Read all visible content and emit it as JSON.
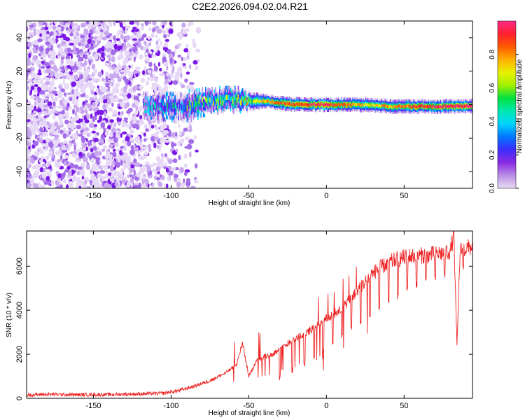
{
  "title": "C2E2.2026.094.02.04.R21",
  "chart_data": [
    {
      "type": "heatmap",
      "name": "spectrogram",
      "xlabel": "Height of straight line (km)",
      "ylabel": "Frequency (Hz)",
      "xlim": [
        -193,
        94
      ],
      "ylim": [
        -50,
        50
      ],
      "xticks": [
        -150,
        -100,
        -50,
        0,
        50
      ],
      "yticks": [
        -40,
        -20,
        0,
        20,
        40
      ],
      "colorbar": {
        "label": "Normalized spectral amplitude",
        "range": [
          0,
          1
        ],
        "ticks": [
          0.0,
          0.2,
          0.4,
          0.6,
          0.8
        ],
        "colors": [
          "#e8dcf2",
          "#b98ee6",
          "#8a2be2",
          "#3d2dff",
          "#0077ff",
          "#00d4ff",
          "#00e8b0",
          "#00e040",
          "#a0f000",
          "#e8f000",
          "#ffb000",
          "#ff5a00",
          "#ff2030",
          "#ff2a8a"
        ]
      },
      "noise_region_km": [
        -193,
        -88
      ],
      "signal_trace": [
        {
          "x": -115,
          "freq": -1,
          "width": 5,
          "amp": 0.2
        },
        {
          "x": -100,
          "freq": -2,
          "width": 6,
          "amp": 0.25
        },
        {
          "x": -90,
          "freq": -1,
          "width": 6,
          "amp": 0.3
        },
        {
          "x": -75,
          "freq": 2,
          "width": 5,
          "amp": 0.4
        },
        {
          "x": -60,
          "freq": 3,
          "width": 5,
          "amp": 0.45
        },
        {
          "x": -50,
          "freq": 2,
          "width": 4,
          "amp": 0.6
        },
        {
          "x": -40,
          "freq": 2,
          "width": 3,
          "amp": 0.75
        },
        {
          "x": -30,
          "freq": 1,
          "width": 3,
          "amp": 0.85
        },
        {
          "x": -20,
          "freq": 0,
          "width": 3,
          "amp": 0.85
        },
        {
          "x": -10,
          "freq": 0,
          "width": 3,
          "amp": 0.9
        },
        {
          "x": 0,
          "freq": 0,
          "width": 3,
          "amp": 0.9
        },
        {
          "x": 10,
          "freq": 0,
          "width": 3,
          "amp": 0.85
        },
        {
          "x": 25,
          "freq": 0,
          "width": 3,
          "amp": 0.7
        },
        {
          "x": 40,
          "freq": -1,
          "width": 3,
          "amp": 0.75
        },
        {
          "x": 55,
          "freq": -1,
          "width": 3,
          "amp": 0.85
        },
        {
          "x": 70,
          "freq": -1,
          "width": 3,
          "amp": 0.9
        },
        {
          "x": 94,
          "freq": -1,
          "width": 3,
          "amp": 0.95
        }
      ]
    },
    {
      "type": "line",
      "name": "snr",
      "xlabel": "Height of straight line (km)",
      "ylabel": "SNR (10 * v/v)",
      "xlim": [
        -193,
        94
      ],
      "ylim": [
        0,
        7600
      ],
      "xticks": [
        -150,
        -100,
        -50,
        0,
        50
      ],
      "yticks": [
        0,
        2000,
        4000,
        6000
      ],
      "color": "#ee2222",
      "x": [
        -193,
        -180,
        -160,
        -140,
        -120,
        -105,
        -95,
        -85,
        -75,
        -65,
        -58,
        -54,
        -50,
        -45,
        -40,
        -35,
        -30,
        -25,
        -20,
        -15,
        -10,
        -5,
        0,
        5,
        10,
        15,
        20,
        25,
        30,
        35,
        40,
        45,
        50,
        55,
        60,
        65,
        70,
        75,
        80,
        82,
        84,
        86,
        90,
        94
      ],
      "y": [
        150,
        180,
        160,
        170,
        200,
        230,
        350,
        550,
        800,
        1150,
        1500,
        2500,
        1000,
        1700,
        1900,
        2000,
        2200,
        2500,
        2700,
        2900,
        3100,
        3300,
        3600,
        3850,
        4100,
        4450,
        4900,
        5300,
        5700,
        5950,
        6150,
        6300,
        6400,
        6450,
        6480,
        6500,
        6550,
        6600,
        6700,
        7500,
        2300,
        6700,
        6800,
        6900
      ],
      "notches": [
        {
          "x": -30,
          "to": 800
        },
        {
          "x": -22,
          "to": 1100
        },
        {
          "x": -14,
          "to": 1400
        },
        {
          "x": -8,
          "to": 1700
        },
        {
          "x": -2,
          "to": 2000
        },
        {
          "x": 4,
          "to": 2400
        },
        {
          "x": 10,
          "to": 2700
        },
        {
          "x": 16,
          "to": 3000
        },
        {
          "x": 22,
          "to": 3300
        },
        {
          "x": 28,
          "to": 3600
        },
        {
          "x": 34,
          "to": 3900
        },
        {
          "x": 40,
          "to": 4200
        },
        {
          "x": 46,
          "to": 4500
        },
        {
          "x": 52,
          "to": 4800
        },
        {
          "x": 58,
          "to": 5000
        },
        {
          "x": 64,
          "to": 5200
        },
        {
          "x": 70,
          "to": 5300
        },
        {
          "x": 76,
          "to": 5400
        },
        {
          "x": 88,
          "to": 5800
        }
      ]
    }
  ]
}
